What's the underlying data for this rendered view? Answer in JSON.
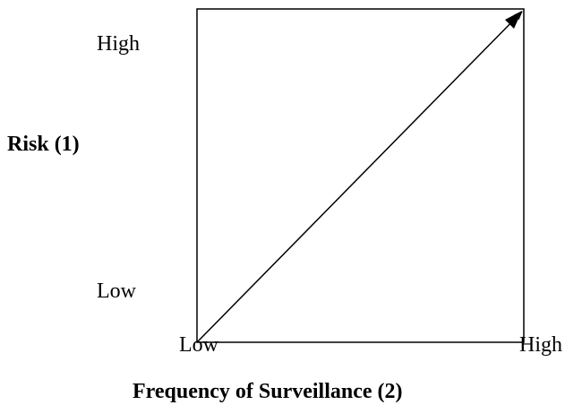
{
  "y_axis": {
    "title": "Risk (1)",
    "high": "High",
    "low": "Low"
  },
  "x_axis": {
    "title": "Frequency of Surveillance (2)",
    "low": "Low",
    "high": "High"
  }
}
